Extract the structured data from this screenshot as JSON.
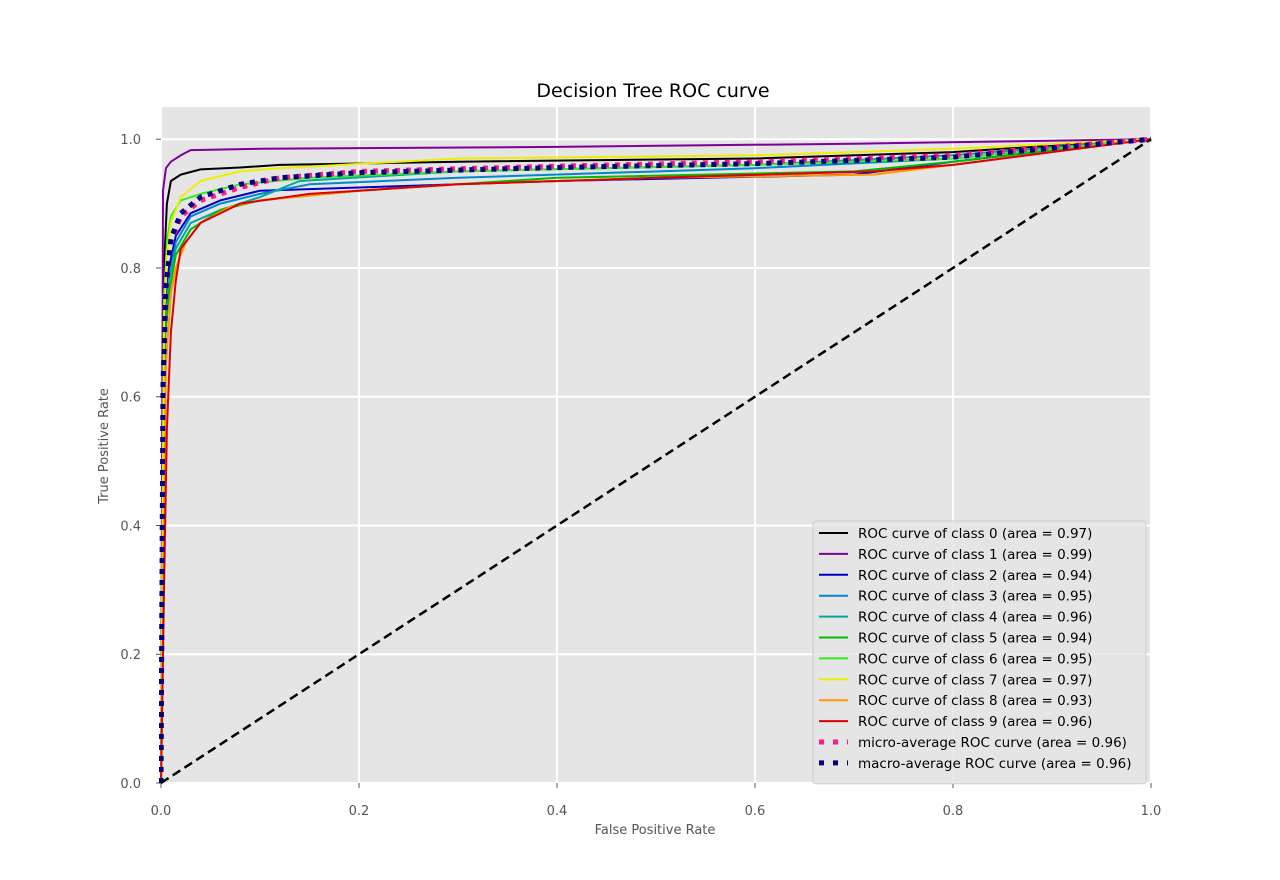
{
  "chart_data": {
    "type": "line",
    "title": "Decision Tree ROC curve",
    "xlabel": "False Positive Rate",
    "ylabel": "True Positive Rate",
    "xlim": [
      0.0,
      1.0
    ],
    "ylim": [
      0.0,
      1.05
    ],
    "xticks": [
      "0.0",
      "0.2",
      "0.4",
      "0.6",
      "0.8",
      "1.0"
    ],
    "yticks": [
      "0.0",
      "0.2",
      "0.4",
      "0.6",
      "0.8",
      "1.0"
    ],
    "grid": true,
    "legend_position": "lower-right",
    "background": "#e5e5e5",
    "series": [
      {
        "name": "ROC curve of class 0 (area = 0.97)",
        "color": "#000000",
        "style": "solid",
        "x": [
          0,
          0.003,
          0.006,
          0.01,
          0.02,
          0.04,
          0.08,
          0.12,
          0.3,
          0.6,
          0.8,
          1.0
        ],
        "y": [
          0,
          0.8,
          0.9,
          0.935,
          0.945,
          0.953,
          0.956,
          0.96,
          0.965,
          0.97,
          0.98,
          1.0
        ]
      },
      {
        "name": "ROC curve of class 1 (area = 0.99)",
        "color": "#7e0099",
        "style": "solid",
        "x": [
          0,
          0.002,
          0.005,
          0.01,
          0.02,
          0.03,
          0.1,
          0.4,
          0.7,
          1.0
        ],
        "y": [
          0,
          0.92,
          0.955,
          0.965,
          0.975,
          0.983,
          0.985,
          0.988,
          0.993,
          1.0
        ]
      },
      {
        "name": "ROC curve of class 2 (area = 0.94)",
        "color": "#0000cc",
        "style": "solid",
        "x": [
          0,
          0.004,
          0.008,
          0.015,
          0.03,
          0.06,
          0.1,
          0.2,
          0.4,
          0.7,
          0.8,
          1.0
        ],
        "y": [
          0,
          0.72,
          0.8,
          0.85,
          0.885,
          0.905,
          0.92,
          0.925,
          0.935,
          0.945,
          0.965,
          1.0
        ]
      },
      {
        "name": "ROC curve of class 3 (area = 0.95)",
        "color": "#0088cc",
        "style": "solid",
        "x": [
          0,
          0.004,
          0.008,
          0.015,
          0.03,
          0.06,
          0.1,
          0.15,
          0.3,
          0.6,
          0.8,
          1.0
        ],
        "y": [
          0,
          0.7,
          0.78,
          0.84,
          0.88,
          0.9,
          0.915,
          0.93,
          0.94,
          0.955,
          0.97,
          1.0
        ]
      },
      {
        "name": "ROC curve of class 4 (area = 0.96)",
        "color": "#00a99a",
        "style": "solid",
        "x": [
          0,
          0.004,
          0.008,
          0.015,
          0.03,
          0.06,
          0.1,
          0.14,
          0.3,
          0.6,
          0.8,
          1.0
        ],
        "y": [
          0,
          0.7,
          0.78,
          0.83,
          0.87,
          0.89,
          0.91,
          0.935,
          0.95,
          0.96,
          0.975,
          1.0
        ]
      },
      {
        "name": "ROC curve of class 5 (area = 0.94)",
        "color": "#00bb00",
        "style": "solid",
        "x": [
          0,
          0.004,
          0.008,
          0.015,
          0.03,
          0.06,
          0.1,
          0.2,
          0.4,
          0.7,
          0.8,
          1.0
        ],
        "y": [
          0,
          0.69,
          0.76,
          0.82,
          0.86,
          0.89,
          0.905,
          0.92,
          0.94,
          0.95,
          0.965,
          1.0
        ]
      },
      {
        "name": "ROC curve of class 6 (area = 0.95)",
        "color": "#33ee22",
        "style": "solid",
        "x": [
          0,
          0.003,
          0.006,
          0.01,
          0.02,
          0.04,
          0.08,
          0.15,
          0.3,
          0.6,
          0.8,
          1.0
        ],
        "y": [
          0,
          0.75,
          0.84,
          0.88,
          0.905,
          0.915,
          0.93,
          0.94,
          0.95,
          0.96,
          0.97,
          1.0
        ]
      },
      {
        "name": "ROC curve of class 7 (area = 0.97)",
        "color": "#eeee00",
        "style": "solid",
        "x": [
          0,
          0.003,
          0.006,
          0.01,
          0.02,
          0.04,
          0.08,
          0.12,
          0.3,
          0.6,
          0.8,
          1.0
        ],
        "y": [
          0,
          0.72,
          0.82,
          0.87,
          0.91,
          0.935,
          0.95,
          0.955,
          0.97,
          0.975,
          0.985,
          1.0
        ]
      },
      {
        "name": "ROC curve of class 8 (area = 0.93)",
        "color": "#ff9900",
        "style": "solid",
        "x": [
          0,
          0.005,
          0.01,
          0.015,
          0.025,
          0.04,
          0.07,
          0.1,
          0.2,
          0.3,
          0.5,
          0.72,
          0.8,
          1.0
        ],
        "y": [
          0,
          0.65,
          0.76,
          0.8,
          0.84,
          0.87,
          0.895,
          0.905,
          0.92,
          0.93,
          0.94,
          0.945,
          0.96,
          1.0
        ]
      },
      {
        "name": "ROC curve of class 9 (area = 0.96)",
        "color": "#dd0000",
        "style": "solid",
        "x": [
          0,
          0.003,
          0.006,
          0.01,
          0.015,
          0.02,
          0.04,
          0.08,
          0.15,
          0.3,
          0.5,
          0.72,
          0.8,
          1.0
        ],
        "y": [
          0,
          0.3,
          0.55,
          0.7,
          0.78,
          0.83,
          0.87,
          0.9,
          0.915,
          0.93,
          0.94,
          0.95,
          0.96,
          1.0
        ]
      },
      {
        "name": "micro-average ROC curve (area = 0.96)",
        "color": "#ff1a8c",
        "style": "dotted",
        "x": [
          0,
          0.002,
          0.005,
          0.01,
          0.02,
          0.04,
          0.08,
          0.12,
          0.2,
          0.4,
          0.6,
          0.8,
          1.0
        ],
        "y": [
          0,
          0.6,
          0.76,
          0.84,
          0.88,
          0.905,
          0.925,
          0.94,
          0.95,
          0.958,
          0.965,
          0.975,
          1.0
        ]
      },
      {
        "name": "macro-average ROC curve (area = 0.96)",
        "color": "#000080",
        "style": "dotted",
        "x": [
          0,
          0.002,
          0.005,
          0.01,
          0.02,
          0.04,
          0.08,
          0.12,
          0.2,
          0.4,
          0.6,
          0.8,
          1.0
        ],
        "y": [
          0,
          0.62,
          0.77,
          0.845,
          0.885,
          0.91,
          0.93,
          0.94,
          0.948,
          0.956,
          0.962,
          0.972,
          1.0
        ]
      },
      {
        "name": "",
        "color": "#000000",
        "style": "dashed",
        "x": [
          0,
          1
        ],
        "y": [
          0,
          1
        ]
      }
    ]
  }
}
